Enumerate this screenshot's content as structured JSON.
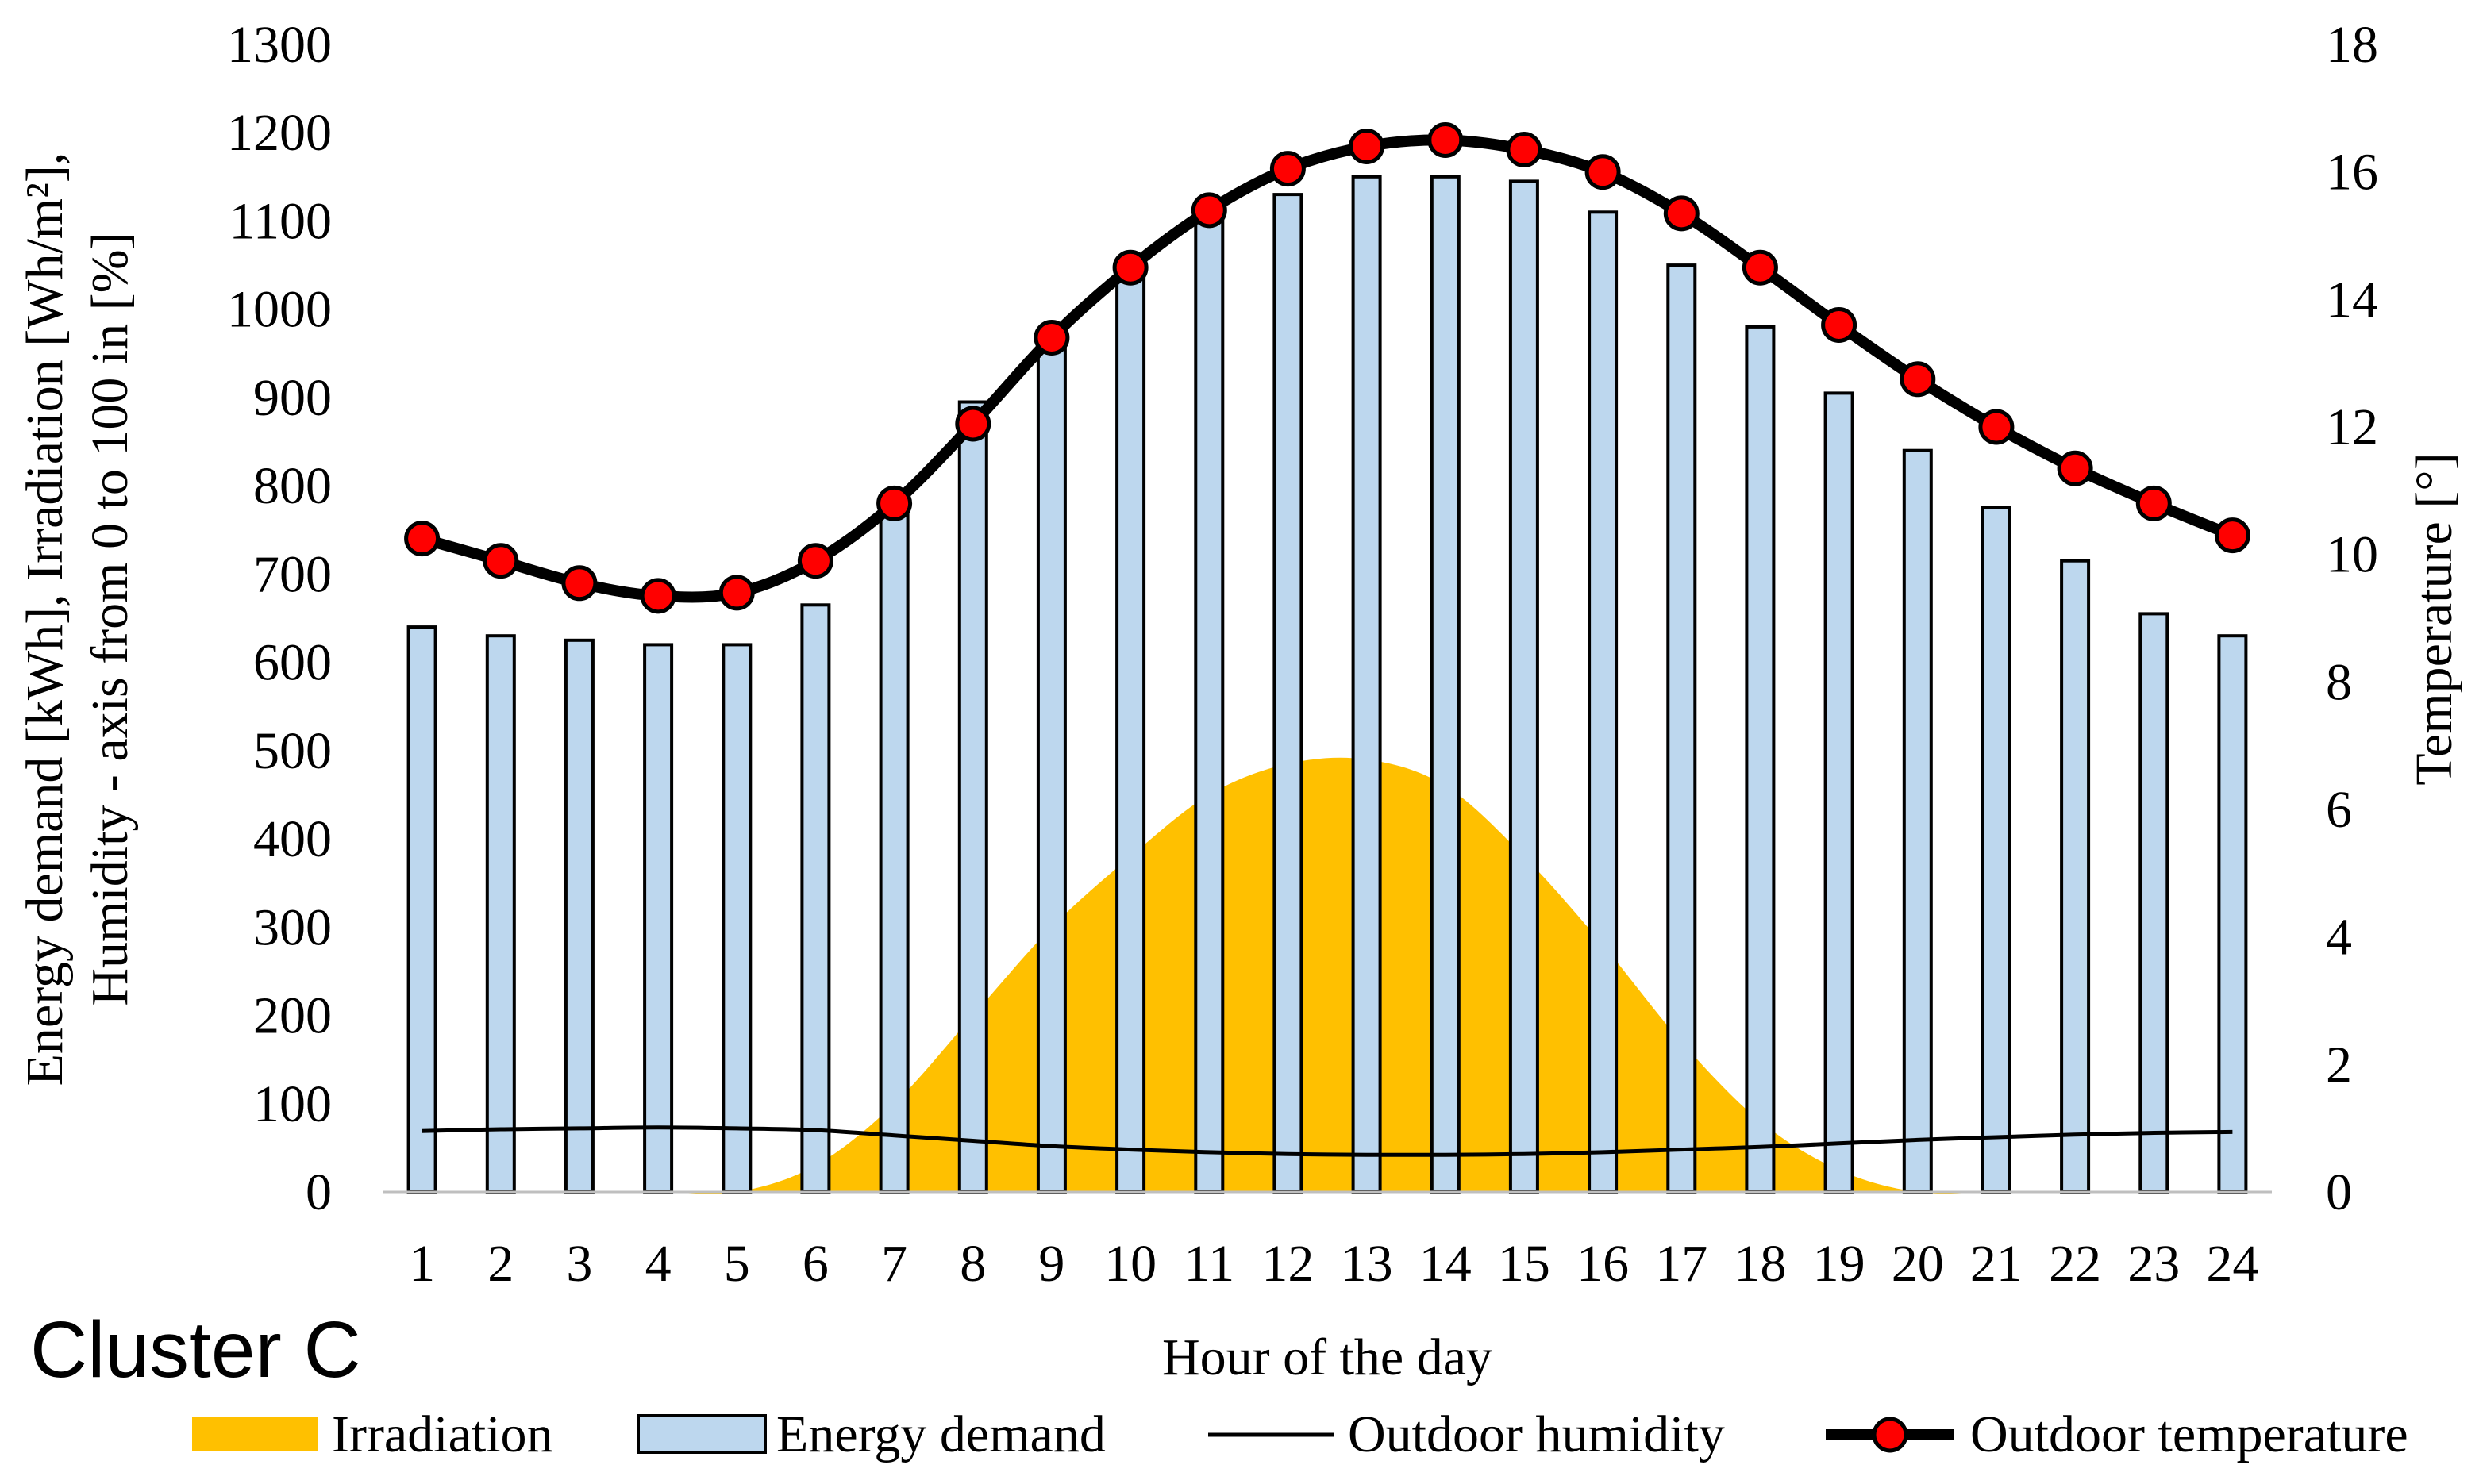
{
  "colors": {
    "irradiation": "#FFC000",
    "energy_fill": "#BDD7EE",
    "energy_stroke": "#000000",
    "humidity": "#000000",
    "temperature_line": "#000000",
    "temperature_marker": "#FF0000"
  },
  "cluster_label": "Cluster C",
  "chart_data": {
    "type": "bar",
    "title": "",
    "xlabel": "Hour of the day",
    "ylabel_left_line1": "Energy demand [kWh], Irradiation [Wh/m²],",
    "ylabel_left_line2": "Humidity - axis from 0 to 100 in [%]",
    "ylabel_right": "Temperature [°]",
    "ylim_left": [
      0,
      1300
    ],
    "ylim_right": [
      0,
      18
    ],
    "left_ticks": [
      "0",
      "100",
      "200",
      "300",
      "400",
      "500",
      "600",
      "700",
      "800",
      "900",
      "1000",
      "1100",
      "1200",
      "1300"
    ],
    "right_ticks": [
      "0",
      "2",
      "4",
      "6",
      "8",
      "10",
      "12",
      "14",
      "16",
      "18"
    ],
    "categories": [
      "1",
      "2",
      "3",
      "4",
      "5",
      "6",
      "7",
      "8",
      "9",
      "10",
      "11",
      "12",
      "13",
      "14",
      "15",
      "16",
      "17",
      "18",
      "19",
      "20",
      "21",
      "22",
      "23",
      "24"
    ],
    "legend_position": "bottom",
    "series": [
      {
        "name": "Irradiation",
        "type": "area",
        "axis": "left",
        "values": [
          0,
          0,
          0,
          0,
          0,
          30,
          100,
          200,
          300,
          380,
          450,
          485,
          490,
          460,
          380,
          280,
          170,
          80,
          25,
          0,
          0,
          0,
          0,
          0
        ]
      },
      {
        "name": "Energy demand",
        "type": "bar",
        "axis": "left",
        "values": [
          640,
          630,
          625,
          620,
          620,
          665,
          780,
          895,
          965,
          1045,
          1105,
          1130,
          1150,
          1150,
          1145,
          1110,
          1050,
          980,
          905,
          840,
          775,
          715,
          655,
          630
        ]
      },
      {
        "name": "Outdoor humidity",
        "type": "line",
        "axis": "left",
        "values": [
          69,
          71,
          72,
          73,
          72,
          70,
          64,
          58,
          52,
          48,
          45,
          43,
          42,
          42,
          43,
          45,
          48,
          51,
          55,
          59,
          62,
          65,
          67,
          68
        ]
      },
      {
        "name": "Outdoor temperature",
        "type": "line",
        "axis": "right",
        "values": [
          10.25,
          9.9,
          9.55,
          9.35,
          9.4,
          9.9,
          10.8,
          12.05,
          13.4,
          14.5,
          15.4,
          16.05,
          16.4,
          16.5,
          16.35,
          16.0,
          15.35,
          14.5,
          13.6,
          12.75,
          12.0,
          11.35,
          10.8,
          10.3
        ]
      }
    ]
  }
}
